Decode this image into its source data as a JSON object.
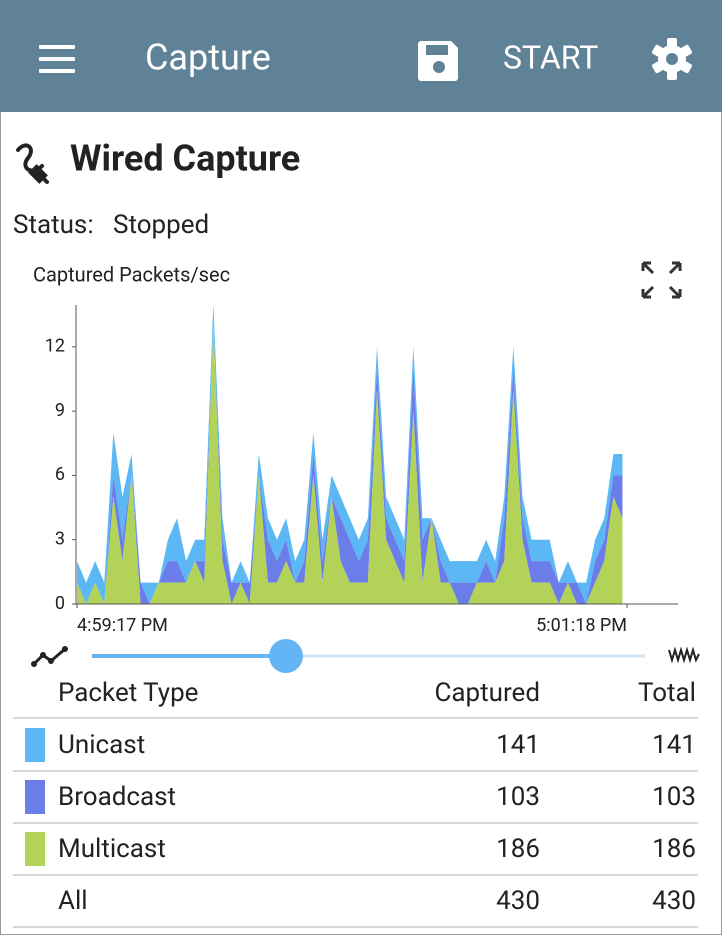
{
  "app_bar": {
    "title": "Capture",
    "action": "START"
  },
  "section_title": "Wired Capture",
  "status": {
    "label": "Status:",
    "value": "Stopped"
  },
  "chart_data": {
    "type": "area",
    "stacked": true,
    "title": "Captured Packets/sec",
    "x": [
      0,
      2,
      4,
      6,
      8,
      10,
      12,
      14,
      16,
      18,
      20,
      22,
      24,
      26,
      28,
      30,
      32,
      34,
      36,
      38,
      40,
      42,
      44,
      46,
      48,
      50,
      52,
      54,
      56,
      58,
      60,
      62,
      64,
      66,
      68,
      70,
      72,
      74,
      76,
      78,
      80,
      82,
      84,
      86,
      88,
      90,
      92,
      94,
      96,
      98,
      100,
      102,
      104,
      106,
      108,
      110,
      112,
      114,
      116,
      118,
      120
    ],
    "xlim": [
      0,
      121
    ],
    "xticks": [
      {
        "value": 0,
        "label": "4:59:17 PM"
      },
      {
        "value": 121,
        "label": "5:01:18 PM"
      }
    ],
    "ylim": [
      0,
      14
    ],
    "yticks": [
      0,
      3,
      6,
      9,
      12
    ],
    "series": [
      {
        "name": "Unicast",
        "color": "#5bb8f5",
        "values": [
          1,
          1,
          1,
          1,
          2,
          2,
          1,
          0,
          1,
          0,
          1,
          2,
          1,
          1,
          1,
          1,
          1,
          0,
          1,
          0,
          1,
          1,
          1,
          1,
          1,
          1,
          1,
          1,
          1,
          1,
          1,
          1,
          1,
          1,
          1,
          1,
          1,
          1,
          1,
          0,
          1,
          1,
          1,
          1,
          1,
          1,
          1,
          1,
          1,
          1,
          1,
          1,
          1,
          0,
          1,
          0,
          1,
          1,
          1,
          1,
          1
        ]
      },
      {
        "name": "Broadcast",
        "color": "#6a7de8",
        "values": [
          0,
          0,
          0,
          0,
          1,
          1,
          0,
          1,
          0,
          0,
          1,
          1,
          0,
          0,
          1,
          0,
          1,
          1,
          0,
          1,
          0,
          2,
          1,
          1,
          0,
          1,
          1,
          1,
          0,
          2,
          2,
          1,
          2,
          1,
          1,
          1,
          1,
          2,
          2,
          0,
          1,
          0,
          1,
          1,
          0,
          1,
          0,
          2,
          1,
          1,
          1,
          1,
          1,
          1,
          0,
          1,
          0,
          1,
          1,
          1,
          2
        ]
      },
      {
        "name": "Multicast",
        "color": "#b2d357",
        "values": [
          1,
          0,
          1,
          0,
          5,
          2,
          6,
          0,
          0,
          1,
          1,
          1,
          1,
          2,
          1,
          13,
          2,
          0,
          1,
          0,
          6,
          1,
          1,
          2,
          1,
          1,
          6,
          1,
          5,
          2,
          1,
          1,
          1,
          10,
          3,
          2,
          1,
          9,
          1,
          4,
          1,
          1,
          0,
          0,
          1,
          1,
          1,
          2,
          10,
          3,
          1,
          1,
          1,
          0,
          1,
          0,
          0,
          1,
          2,
          5,
          4
        ]
      }
    ]
  },
  "table": {
    "header": [
      "Packet Type",
      "Captured",
      "Total"
    ],
    "rows": [
      [
        "Unicast",
        "141",
        "141"
      ],
      [
        "Broadcast",
        "103",
        "103"
      ],
      [
        "Multicast",
        "186",
        "186"
      ],
      [
        "All",
        "430",
        "430"
      ]
    ]
  }
}
